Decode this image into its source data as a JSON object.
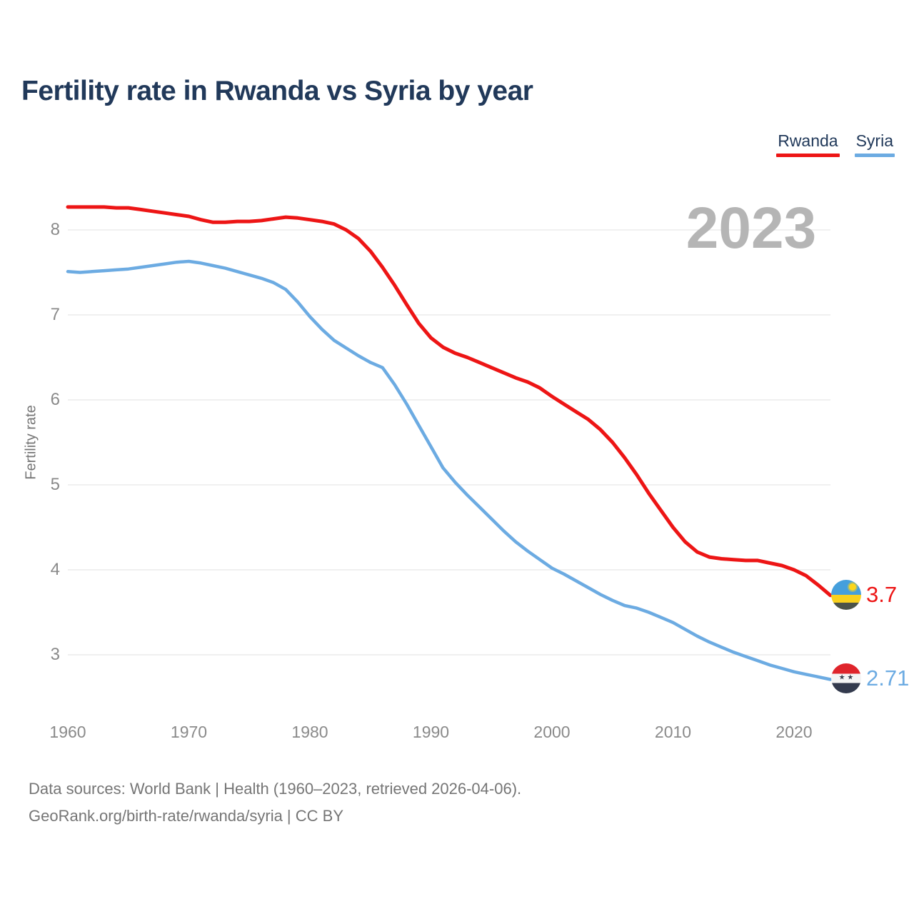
{
  "title": "Fertility rate in Rwanda vs Syria by year",
  "watermark": "2023",
  "legend": [
    {
      "label": "Rwanda",
      "color": "#ed1515"
    },
    {
      "label": "Syria",
      "color": "#6cabe2"
    }
  ],
  "y_axis": {
    "label": "Fertility rate",
    "ticks": [
      8,
      7,
      6,
      5,
      4,
      3
    ]
  },
  "x_axis": {
    "ticks": [
      1960,
      1970,
      1980,
      1990,
      2000,
      2010,
      2020
    ]
  },
  "end_labels": [
    {
      "series": "Rwanda",
      "value": "3.7",
      "color": "#ed1515",
      "flag": "rwanda-flag-icon"
    },
    {
      "series": "Syria",
      "value": "2.71",
      "color": "#6cabe2",
      "flag": "syria-flag-icon"
    }
  ],
  "icons": {
    "syria_stars": "★ ★"
  },
  "footer": {
    "line1": "Data sources: World Bank | Health (1960–2023, retrieved 2026-04-06).",
    "line2": "GeoRank.org/birth-rate/rwanda/syria | CC BY"
  },
  "chart_data": {
    "type": "line",
    "title": "Fertility rate in Rwanda vs Syria by year",
    "xlabel": "",
    "ylabel": "Fertility rate",
    "xlim": [
      1960,
      2023
    ],
    "ylim": [
      2.4,
      8.6
    ],
    "grid": "horizontal",
    "legend_position": "top-right",
    "x": [
      1960,
      1961,
      1962,
      1963,
      1964,
      1965,
      1966,
      1967,
      1968,
      1969,
      1970,
      1971,
      1972,
      1973,
      1974,
      1975,
      1976,
      1977,
      1978,
      1979,
      1980,
      1981,
      1982,
      1983,
      1984,
      1985,
      1986,
      1987,
      1988,
      1989,
      1990,
      1991,
      1992,
      1993,
      1994,
      1995,
      1996,
      1997,
      1998,
      1999,
      2000,
      2001,
      2002,
      2003,
      2004,
      2005,
      2006,
      2007,
      2008,
      2009,
      2010,
      2011,
      2012,
      2013,
      2014,
      2015,
      2016,
      2017,
      2018,
      2019,
      2020,
      2021,
      2022,
      2023
    ],
    "series": [
      {
        "name": "Rwanda",
        "color": "#ed1515",
        "end_value": 3.7,
        "values": [
          8.27,
          8.27,
          8.27,
          8.27,
          8.26,
          8.26,
          8.24,
          8.22,
          8.2,
          8.18,
          8.16,
          8.12,
          8.09,
          8.09,
          8.1,
          8.1,
          8.11,
          8.13,
          8.15,
          8.14,
          8.12,
          8.1,
          8.07,
          8.0,
          7.9,
          7.75,
          7.56,
          7.35,
          7.12,
          6.9,
          6.73,
          6.62,
          6.55,
          6.5,
          6.44,
          6.38,
          6.32,
          6.26,
          6.21,
          6.14,
          6.04,
          5.95,
          5.86,
          5.77,
          5.65,
          5.5,
          5.32,
          5.12,
          4.9,
          4.7,
          4.5,
          4.33,
          4.21,
          4.15,
          4.13,
          4.12,
          4.11,
          4.11,
          4.08,
          4.05,
          4.0,
          3.93,
          3.82,
          3.7
        ]
      },
      {
        "name": "Syria",
        "color": "#6cabe2",
        "end_value": 2.71,
        "values": [
          7.51,
          7.5,
          7.51,
          7.52,
          7.53,
          7.54,
          7.56,
          7.58,
          7.6,
          7.62,
          7.63,
          7.61,
          7.58,
          7.55,
          7.51,
          7.47,
          7.43,
          7.38,
          7.3,
          7.15,
          6.98,
          6.83,
          6.7,
          6.61,
          6.52,
          6.44,
          6.38,
          6.18,
          5.95,
          5.7,
          5.45,
          5.2,
          5.03,
          4.88,
          4.74,
          4.6,
          4.46,
          4.33,
          4.22,
          4.12,
          4.02,
          3.95,
          3.87,
          3.79,
          3.71,
          3.64,
          3.58,
          3.55,
          3.5,
          3.44,
          3.38,
          3.3,
          3.22,
          3.15,
          3.09,
          3.03,
          2.98,
          2.93,
          2.88,
          2.84,
          2.8,
          2.77,
          2.74,
          2.71
        ]
      }
    ]
  }
}
